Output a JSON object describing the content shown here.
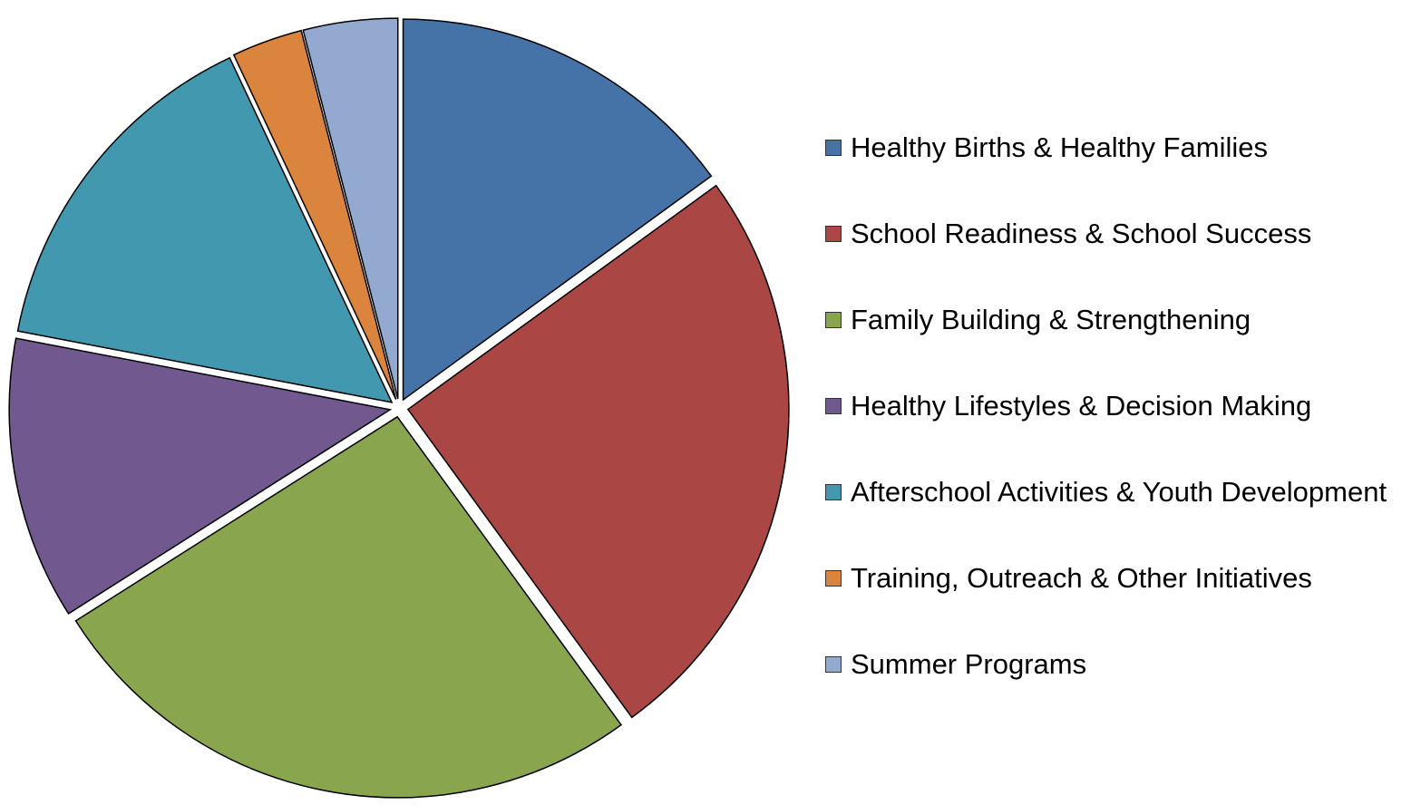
{
  "chart_data": {
    "type": "pie",
    "categories": [
      "Healthy Births & Healthy Families",
      "School Readiness & School Success",
      "Family Building & Strengthening",
      "Healthy Lifestyles & Decision Making",
      "Afterschool Activities & Youth Development",
      "Training, Outreach & Other Initiatives",
      "Summer Programs"
    ],
    "values": [
      15,
      25,
      26,
      12,
      15,
      3,
      4
    ],
    "colors": [
      "#4572a7",
      "#aa4643",
      "#89a54e",
      "#71588f",
      "#4198af",
      "#db843d",
      "#93a9cf"
    ],
    "legend": "right"
  }
}
